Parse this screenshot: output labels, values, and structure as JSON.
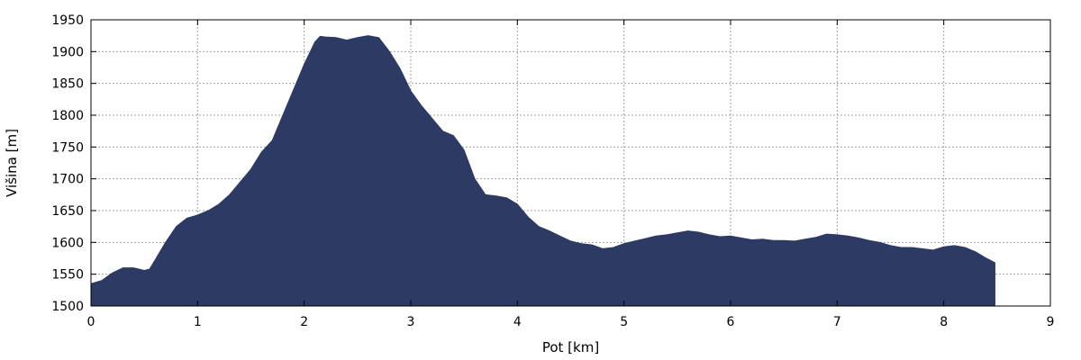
{
  "chart_data": {
    "type": "area",
    "title": "",
    "xlabel": "Pot [km]",
    "ylabel": "Višina [m]",
    "xlim": [
      0,
      9
    ],
    "ylim": [
      1500,
      1950
    ],
    "x_ticks": [
      "0",
      "1",
      "2",
      "3",
      "4",
      "5",
      "6",
      "7",
      "8",
      "9"
    ],
    "y_ticks": [
      "1500",
      "1550",
      "1600",
      "1650",
      "1700",
      "1750",
      "1800",
      "1850",
      "1900",
      "1950"
    ],
    "grid": true,
    "fill_color": "#2d3a64",
    "series": [
      {
        "x": [
          0,
          0.1,
          0.2,
          0.3,
          0.4,
          0.5,
          0.55,
          0.6,
          0.7,
          0.8,
          0.9,
          1.0,
          1.1,
          1.2,
          1.3,
          1.4,
          1.5,
          1.6,
          1.7,
          1.8,
          1.9,
          2.0,
          2.1,
          2.15,
          2.2,
          2.3,
          2.4,
          2.5,
          2.6,
          2.7,
          2.8,
          2.9,
          3.0,
          3.1,
          3.2,
          3.3,
          3.4,
          3.5,
          3.6,
          3.7,
          3.8,
          3.9,
          4.0,
          4.1,
          4.2,
          4.3,
          4.4,
          4.5,
          4.6,
          4.7,
          4.8,
          4.9,
          5.0,
          5.1,
          5.2,
          5.3,
          5.4,
          5.5,
          5.6,
          5.7,
          5.8,
          5.9,
          6.0,
          6.1,
          6.2,
          6.3,
          6.4,
          6.5,
          6.6,
          6.7,
          6.8,
          6.9,
          7.0,
          7.1,
          7.2,
          7.3,
          7.4,
          7.5,
          7.6,
          7.7,
          7.8,
          7.9,
          8.0,
          8.1,
          8.2,
          8.3,
          8.4,
          8.48
        ],
        "y": [
          1535,
          1540,
          1552,
          1560,
          1560,
          1556,
          1558,
          1572,
          1600,
          1625,
          1638,
          1643,
          1650,
          1660,
          1675,
          1695,
          1715,
          1742,
          1760,
          1800,
          1840,
          1880,
          1915,
          1924,
          1923,
          1922,
          1918,
          1922,
          1925,
          1922,
          1900,
          1873,
          1838,
          1815,
          1795,
          1775,
          1768,
          1745,
          1700,
          1675,
          1673,
          1670,
          1660,
          1640,
          1625,
          1618,
          1610,
          1602,
          1598,
          1596,
          1590,
          1592,
          1598,
          1602,
          1606,
          1610,
          1612,
          1615,
          1618,
          1616,
          1612,
          1609,
          1610,
          1607,
          1604,
          1605,
          1603,
          1603,
          1602,
          1605,
          1608,
          1613,
          1612,
          1610,
          1607,
          1603,
          1600,
          1595,
          1592,
          1592,
          1590,
          1588,
          1593,
          1595,
          1592,
          1585,
          1575,
          1568
        ]
      }
    ]
  }
}
